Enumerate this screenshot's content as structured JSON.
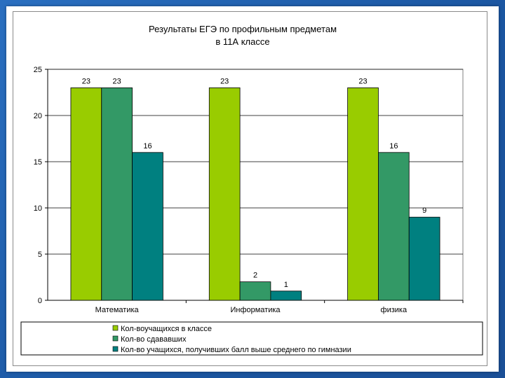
{
  "chart_data": {
    "type": "bar",
    "title_lines": [
      "Результаты ЕГЭ по профильным предметам",
      "в 11А классе"
    ],
    "categories": [
      "Математика",
      "Информатика",
      "физика"
    ],
    "series": [
      {
        "name": "Кол-воучащихся в классе",
        "color": "#99cc00",
        "values": [
          23,
          23,
          23
        ],
        "labels": [
          "23",
          "23",
          "23"
        ]
      },
      {
        "name": "Кол-во сдававших",
        "color": "#339966",
        "values": [
          23,
          2,
          16
        ],
        "labels": [
          "23",
          "2",
          "16"
        ]
      },
      {
        "name": "Кол-во учащихся, получивших балл выше среднего по гимназии",
        "color": "#008080",
        "values": [
          16,
          1,
          9
        ],
        "labels": [
          "16",
          "1",
          "9"
        ]
      }
    ],
    "ylim": [
      0,
      25
    ],
    "yticks": [
      0,
      5,
      10,
      15,
      20,
      25
    ],
    "ytick_labels": [
      "0",
      "5",
      "10",
      "15",
      "20",
      "25"
    ],
    "grid": true,
    "legend_position": "bottom"
  }
}
